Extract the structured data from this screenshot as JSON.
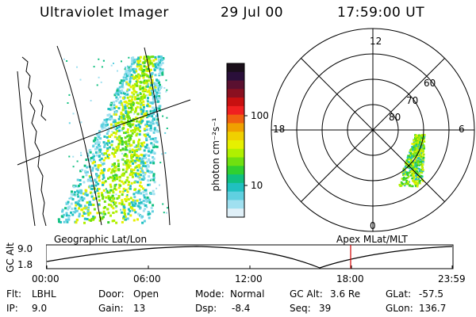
{
  "header": {
    "title": "Ultraviolet Imager",
    "date": "29 Jul 00",
    "time": "17:59:00 UT"
  },
  "colorbar": {
    "label": "photon cm⁻²s⁻¹",
    "ticks": [
      "100",
      "10"
    ],
    "colors": [
      "#1a0f1a",
      "#2a0f3a",
      "#5a1030",
      "#8a1020",
      "#c81010",
      "#f02020",
      "#f06010",
      "#f0a000",
      "#f0d000",
      "#e6f000",
      "#b0f000",
      "#70e010",
      "#30d030",
      "#10c080",
      "#20c0c0",
      "#60d0e0",
      "#a0e0f0",
      "#e0f0f8"
    ]
  },
  "panels": {
    "left_label": "Geographic Lat/Lon",
    "right_label": "Apex MLat/MLT"
  },
  "polar": {
    "mlt_labels": {
      "top": "12",
      "left": "18",
      "right": "6",
      "bottom": "0"
    },
    "lat_labels": [
      "60",
      "70",
      "80"
    ]
  },
  "timeline": {
    "ylabel": "GC Alt",
    "y_ticks": [
      "9.0",
      "1.8"
    ],
    "x_ticks": [
      "00:00",
      "06:00",
      "12:00",
      "18:00",
      "23:59"
    ],
    "marker_color": "#d00000"
  },
  "info": {
    "flt_label": "Flt:",
    "flt_value": "LBHL",
    "ip_label": "IP:",
    "ip_value": "9.0",
    "door_label": "Door:",
    "door_value": "Open",
    "gain_label": "Gain:",
    "gain_value": "13",
    "mode_label": "Mode:",
    "mode_value": "Normal",
    "dsp_label": "Dsp:",
    "dsp_value": "-8.4",
    "gcalt_label": "GC Alt:",
    "gcalt_value": "3.6 Re",
    "seq_label": "Seq:",
    "seq_value": "39",
    "glat_label": "GLat:",
    "glat_value": "-57.5",
    "glon_label": "GLon:",
    "glon_value": "136.7"
  }
}
